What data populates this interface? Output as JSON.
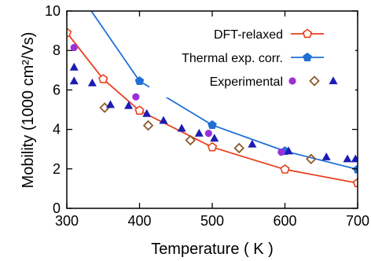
{
  "chart_data": {
    "type": "line",
    "xlabel": "Temperature ( K )",
    "ylabel": "Mobility (1000 cm²/Vs)",
    "xlim": [
      300,
      700
    ],
    "ylim": [
      0,
      10
    ],
    "x_ticks": [
      "300",
      "400",
      "500",
      "600",
      "700"
    ],
    "y_ticks": [
      "0",
      "2",
      "4",
      "6",
      "8",
      "10"
    ],
    "legend_position": "top-right",
    "series": [
      {
        "name": "DFT-relaxed",
        "kind": "line",
        "color": "#e8401c",
        "marker": "open-pentagon",
        "x": [
          300,
          350,
          400,
          500,
          600,
          700
        ],
        "y": [
          8.9,
          6.55,
          4.95,
          3.1,
          1.97,
          1.28
        ]
      },
      {
        "name": "Thermal exp. corr.",
        "kind": "line",
        "color": "#1f6fd6",
        "marker": "filled-pentagon",
        "x": [
          300,
          400,
          500,
          600,
          700
        ],
        "y": [
          11.8,
          6.45,
          4.22,
          2.9,
          1.97
        ]
      },
      {
        "name": "Experimental",
        "kind": "scatter",
        "subseries": [
          {
            "marker": "circle",
            "color": "#9b30d9",
            "x": [
              310,
              395,
              495,
              595
            ],
            "y": [
              8.15,
              5.65,
              3.8,
              2.85
            ]
          },
          {
            "marker": "open-diamond",
            "color": "#8b5a2b",
            "x": [
              352,
              412,
              470,
              537,
              636
            ],
            "y": [
              5.1,
              4.2,
              3.45,
              3.05,
              2.5
            ]
          },
          {
            "marker": "triangle",
            "color": "#1c1cb4",
            "x": [
              310,
              310,
              335,
              360,
              385,
              410,
              433,
              458,
              482,
              503,
              555,
              605,
              657,
              686,
              697
            ],
            "y": [
              7.15,
              6.45,
              6.35,
              5.25,
              5.2,
              4.8,
              4.45,
              4.05,
              3.8,
              3.55,
              3.25,
              2.9,
              2.6,
              2.5,
              2.5
            ]
          }
        ]
      }
    ]
  }
}
